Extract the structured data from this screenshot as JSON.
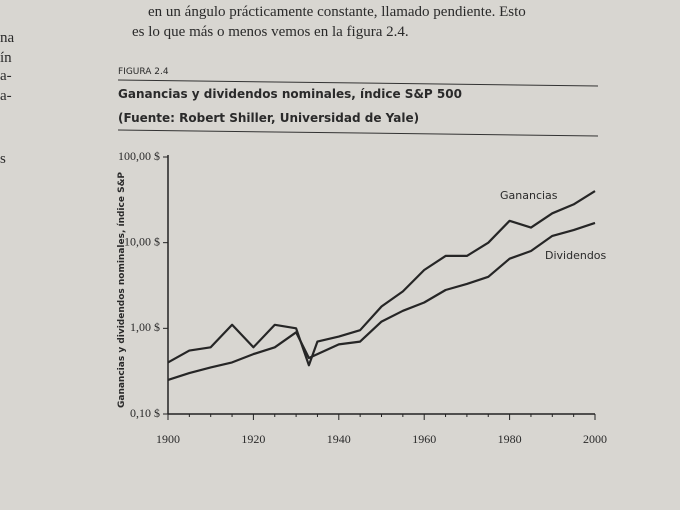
{
  "page": {
    "body_lines": [
      "en un ángulo prácticamente constante, llamado pendiente. Esto",
      "es lo que más o menos vemos en la figura 2.4."
    ],
    "left_margin": [
      "na",
      "ín",
      "a-",
      "a-",
      "s"
    ]
  },
  "chart_data": {
    "type": "line",
    "figure_label": "FIGURA 2.4",
    "title": "Ganancias y dividendos nominales, índice S&P 500",
    "subtitle": "(Fuente: Robert Shiller, Universidad de Yale)",
    "y_label": "Ganancias y dividendos nominales, índice S&P",
    "yscale": "log",
    "x": [
      1900,
      1905,
      1910,
      1915,
      1920,
      1925,
      1930,
      1933,
      1935,
      1940,
      1945,
      1950,
      1955,
      1960,
      1965,
      1970,
      1975,
      1980,
      1985,
      1990,
      1995,
      2000
    ],
    "series": [
      {
        "name": "Ganancias",
        "color": "#262626",
        "values": [
          0.4,
          0.55,
          0.6,
          1.1,
          0.6,
          1.1,
          1.0,
          0.37,
          0.7,
          0.8,
          0.95,
          1.8,
          2.7,
          4.8,
          7,
          7,
          10,
          18,
          15,
          22,
          28,
          40
        ]
      },
      {
        "name": "Dividendos",
        "color": "#262626",
        "values": [
          0.25,
          0.3,
          0.35,
          0.4,
          0.5,
          0.6,
          0.9,
          0.45,
          0.5,
          0.65,
          0.7,
          1.2,
          1.6,
          2,
          2.8,
          3.3,
          4,
          6.5,
          8,
          12,
          14,
          17
        ]
      }
    ],
    "xlim": [
      1900,
      2000
    ],
    "xticks": [
      1900,
      1920,
      1940,
      1960,
      1980,
      2000
    ],
    "ylim": [
      0.1,
      100
    ],
    "yticks": [
      {
        "value": 0.1,
        "label": "0,10 $"
      },
      {
        "value": 1,
        "label": "1,00 $"
      },
      {
        "value": 10,
        "label": "10,00 $"
      },
      {
        "value": 100,
        "label": "100,00 $"
      }
    ]
  }
}
